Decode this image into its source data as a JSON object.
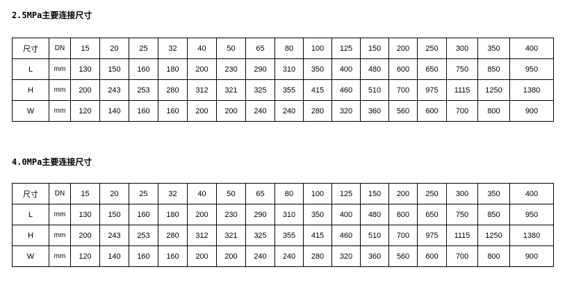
{
  "sections": [
    {
      "title": "2.5MPa主要连接尺寸",
      "rows": [
        [
          "尺寸",
          "DN",
          "15",
          "20",
          "25",
          "32",
          "40",
          "50",
          "65",
          "80",
          "100",
          "125",
          "150",
          "200",
          "250",
          "300",
          "350",
          "400"
        ],
        [
          "L",
          "mm",
          "130",
          "150",
          "160",
          "180",
          "200",
          "230",
          "290",
          "310",
          "350",
          "400",
          "480",
          "600",
          "650",
          "750",
          "850",
          "950"
        ],
        [
          "H",
          "mm",
          "200",
          "243",
          "253",
          "280",
          "312",
          "321",
          "325",
          "355",
          "415",
          "460",
          "510",
          "700",
          "975",
          "1115",
          "1250",
          "1380"
        ],
        [
          "W",
          "mm",
          "120",
          "140",
          "160",
          "160",
          "200",
          "200",
          "240",
          "240",
          "280",
          "320",
          "360",
          "560",
          "600",
          "700",
          "800",
          "900"
        ]
      ]
    },
    {
      "title": "4.0MPa主要连接尺寸",
      "rows": [
        [
          "尺寸",
          "DN",
          "15",
          "20",
          "25",
          "32",
          "40",
          "50",
          "65",
          "80",
          "100",
          "125",
          "150",
          "200",
          "250",
          "300",
          "350",
          "400"
        ],
        [
          "L",
          "mm",
          "130",
          "150",
          "160",
          "180",
          "200",
          "230",
          "290",
          "310",
          "350",
          "400",
          "480",
          "600",
          "650",
          "750",
          "850",
          "950"
        ],
        [
          "H",
          "mm",
          "200",
          "243",
          "253",
          "280",
          "312",
          "321",
          "325",
          "355",
          "415",
          "460",
          "510",
          "700",
          "975",
          "1115",
          "1250",
          "1380"
        ],
        [
          "W",
          "mm",
          "120",
          "140",
          "160",
          "160",
          "200",
          "200",
          "240",
          "240",
          "280",
          "320",
          "360",
          "560",
          "600",
          "700",
          "800",
          "900"
        ]
      ]
    }
  ]
}
